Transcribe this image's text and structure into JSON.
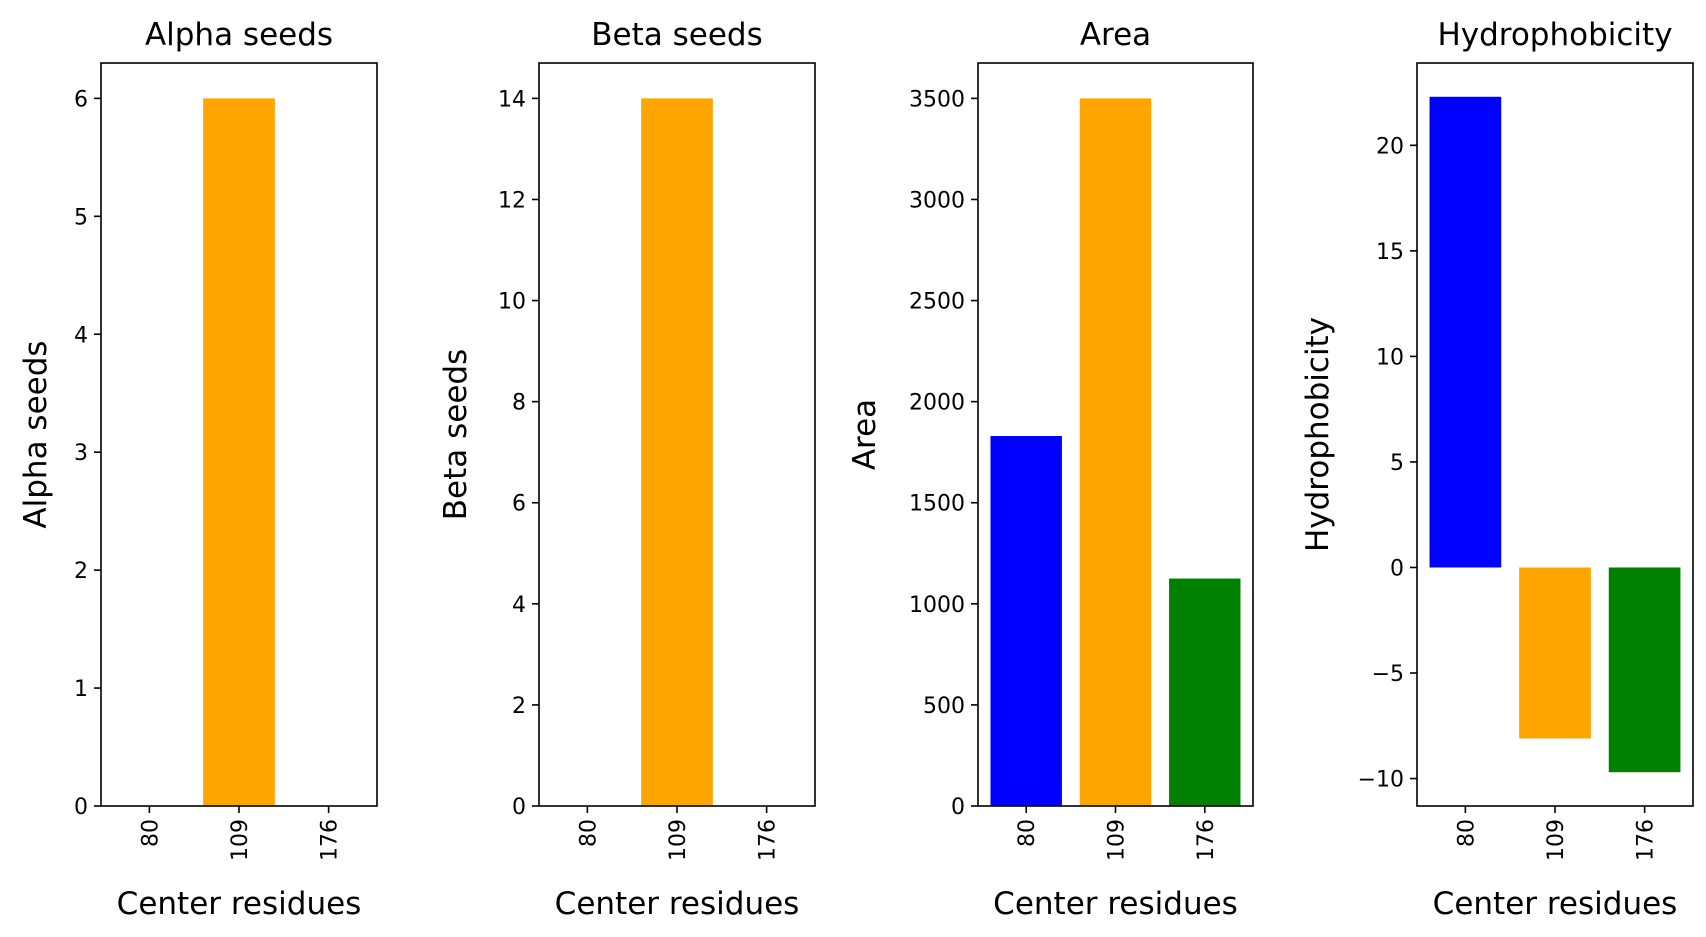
{
  "chart_data": [
    {
      "type": "bar",
      "title": "Alpha seeds",
      "xlabel": "Center residues",
      "ylabel": "Alpha seeds",
      "categories": [
        "80",
        "109",
        "176"
      ],
      "values": [
        0,
        6,
        0
      ],
      "colors": [
        "#0000ff",
        "#ffa500",
        "#008000"
      ],
      "ylim": [
        0,
        6.3
      ],
      "yticks": [
        0,
        1,
        2,
        3,
        4,
        5,
        6
      ],
      "ytick_labels": [
        "0",
        "1",
        "2",
        "3",
        "4",
        "5",
        "6"
      ],
      "grid": false
    },
    {
      "type": "bar",
      "title": "Beta seeds",
      "xlabel": "Center residues",
      "ylabel": "Beta seeds",
      "categories": [
        "80",
        "109",
        "176"
      ],
      "values": [
        0,
        14,
        0
      ],
      "colors": [
        "#0000ff",
        "#ffa500",
        "#008000"
      ],
      "ylim": [
        0,
        14.7
      ],
      "yticks": [
        0,
        2,
        4,
        6,
        8,
        10,
        12,
        14
      ],
      "ytick_labels": [
        "0",
        "2",
        "4",
        "6",
        "8",
        "10",
        "12",
        "14"
      ],
      "grid": false
    },
    {
      "type": "bar",
      "title": "Area",
      "xlabel": "Center residues",
      "ylabel": "Area",
      "categories": [
        "80",
        "109",
        "176"
      ],
      "values": [
        1830,
        3500,
        1125
      ],
      "colors": [
        "#0000ff",
        "#ffa500",
        "#008000"
      ],
      "ylim": [
        0,
        3675
      ],
      "yticks": [
        0,
        500,
        1000,
        1500,
        2000,
        2500,
        3000,
        3500
      ],
      "ytick_labels": [
        "0",
        "500",
        "1000",
        "1500",
        "2000",
        "2500",
        "3000",
        "3500"
      ],
      "grid": false
    },
    {
      "type": "bar",
      "title": "Hydrophobicity",
      "xlabel": "Center residues",
      "ylabel": "Hydrophobicity",
      "categories": [
        "80",
        "109",
        "176"
      ],
      "values": [
        22.3,
        -8.1,
        -9.7
      ],
      "colors": [
        "#0000ff",
        "#ffa500",
        "#008000"
      ],
      "ylim": [
        -11.3,
        23.9
      ],
      "yticks": [
        -10,
        -5,
        0,
        5,
        10,
        15,
        20
      ],
      "ytick_labels": [
        "−10",
        "−5",
        "0",
        "5",
        "10",
        "15",
        "20"
      ],
      "grid": false
    }
  ]
}
